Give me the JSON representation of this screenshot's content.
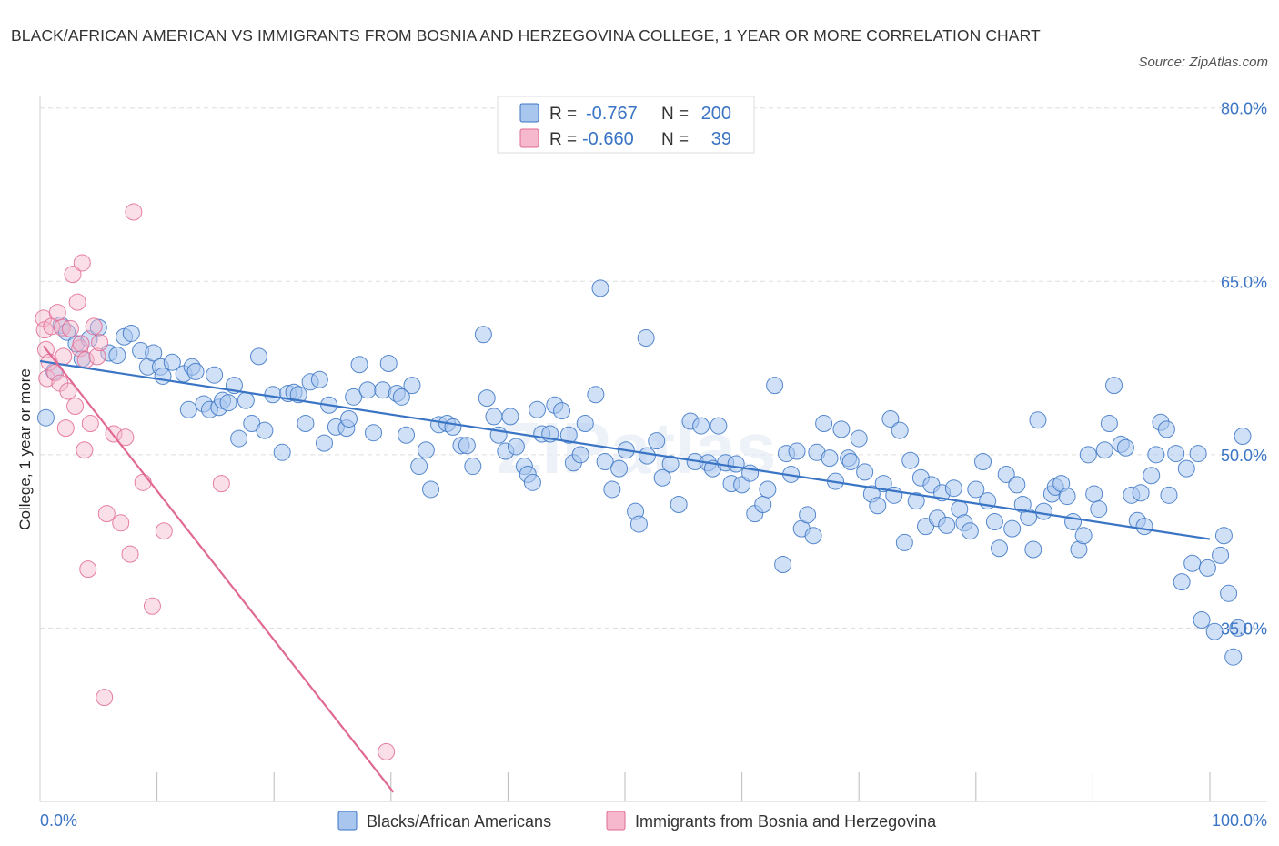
{
  "title": "BLACK/AFRICAN AMERICAN VS IMMIGRANTS FROM BOSNIA AND HERZEGOVINA COLLEGE, 1 YEAR OR MORE CORRELATION CHART",
  "source": "Source: ZipAtlas.com",
  "watermark": "ZIPatlas",
  "colors": {
    "blue": "#3a74c4",
    "blue_fill": "#a9c6ee",
    "pink": "#e06a94",
    "pink_fill": "#f5b8cc",
    "grid": "#dddddd"
  },
  "legend": {
    "rows": [
      {
        "r_label": "R =",
        "r_value": "-0.767",
        "n_label": "N =",
        "n_value": "200"
      },
      {
        "r_label": "R =",
        "r_value": "-0.660",
        "n_label": "N =",
        "n_value": "39"
      }
    ]
  },
  "chart_data": {
    "type": "scatter",
    "ylabel": "College, 1 year or more",
    "xlabel": "",
    "xlim": [
      0,
      100
    ],
    "ylim": [
      20,
      81
    ],
    "x_tick_labels": [
      {
        "value": 0,
        "label": "0.0%"
      },
      {
        "value": 100,
        "label": "100.0%"
      }
    ],
    "y_tick_labels": [
      {
        "value": 35,
        "label": "35.0%"
      },
      {
        "value": 50,
        "label": "50.0%"
      },
      {
        "value": 65,
        "label": "65.0%"
      },
      {
        "value": 80,
        "label": "80.0%"
      }
    ],
    "grid": "horizontal dashed",
    "series": [
      {
        "name": "Blacks/African Americans",
        "color": "#3a74c4",
        "trend": {
          "x": [
            0,
            100
          ],
          "y": [
            58.1,
            42.7
          ]
        },
        "points": [
          [
            0.5,
            53.2
          ],
          [
            1.2,
            57.2
          ],
          [
            1.8,
            61.2
          ],
          [
            2.3,
            60.6
          ],
          [
            3.1,
            59.6
          ],
          [
            3.6,
            58.3
          ],
          [
            4.2,
            60.0
          ],
          [
            5.0,
            61.0
          ],
          [
            5.9,
            58.8
          ],
          [
            6.6,
            58.6
          ],
          [
            7.2,
            60.2
          ],
          [
            7.8,
            60.5
          ],
          [
            8.6,
            59.0
          ],
          [
            9.2,
            57.6
          ],
          [
            9.7,
            58.8
          ],
          [
            10.3,
            57.6
          ],
          [
            10.5,
            56.8
          ],
          [
            11.3,
            58.0
          ],
          [
            12.3,
            57.0
          ],
          [
            12.7,
            53.9
          ],
          [
            13.0,
            57.6
          ],
          [
            13.3,
            57.2
          ],
          [
            14.0,
            54.4
          ],
          [
            14.5,
            53.9
          ],
          [
            14.9,
            56.9
          ],
          [
            15.3,
            54.1
          ],
          [
            15.6,
            54.7
          ],
          [
            16.1,
            54.5
          ],
          [
            16.6,
            56.0
          ],
          [
            17.0,
            51.4
          ],
          [
            17.6,
            54.7
          ],
          [
            18.1,
            52.7
          ],
          [
            18.7,
            58.5
          ],
          [
            19.2,
            52.1
          ],
          [
            19.9,
            55.2
          ],
          [
            20.7,
            50.2
          ],
          [
            21.2,
            55.3
          ],
          [
            21.7,
            55.4
          ],
          [
            22.1,
            55.2
          ],
          [
            22.7,
            52.7
          ],
          [
            23.1,
            56.3
          ],
          [
            23.9,
            56.5
          ],
          [
            24.3,
            51.0
          ],
          [
            24.7,
            54.3
          ],
          [
            25.3,
            52.4
          ],
          [
            26.2,
            52.3
          ],
          [
            26.4,
            53.1
          ],
          [
            26.8,
            55.0
          ],
          [
            27.3,
            57.8
          ],
          [
            28.0,
            55.6
          ],
          [
            28.5,
            51.9
          ],
          [
            29.3,
            55.6
          ],
          [
            29.8,
            57.9
          ],
          [
            30.5,
            55.3
          ],
          [
            30.9,
            55.0
          ],
          [
            31.3,
            51.7
          ],
          [
            31.8,
            56.0
          ],
          [
            32.4,
            49.0
          ],
          [
            33.0,
            50.4
          ],
          [
            33.4,
            47.0
          ],
          [
            34.1,
            52.6
          ],
          [
            34.8,
            52.7
          ],
          [
            35.3,
            52.4
          ],
          [
            36.0,
            50.8
          ],
          [
            36.5,
            50.8
          ],
          [
            37.0,
            49.0
          ],
          [
            37.9,
            60.4
          ],
          [
            38.2,
            54.9
          ],
          [
            38.8,
            53.3
          ],
          [
            39.2,
            51.7
          ],
          [
            39.8,
            50.3
          ],
          [
            40.2,
            53.3
          ],
          [
            40.7,
            50.7
          ],
          [
            41.4,
            49.0
          ],
          [
            41.7,
            48.3
          ],
          [
            42.1,
            47.6
          ],
          [
            42.5,
            53.9
          ],
          [
            42.9,
            51.8
          ],
          [
            43.6,
            51.8
          ],
          [
            44.0,
            54.3
          ],
          [
            44.6,
            53.8
          ],
          [
            45.2,
            51.7
          ],
          [
            45.6,
            49.3
          ],
          [
            46.2,
            50.0
          ],
          [
            46.6,
            52.7
          ],
          [
            47.5,
            55.2
          ],
          [
            47.9,
            64.4
          ],
          [
            48.3,
            49.4
          ],
          [
            48.9,
            47.0
          ],
          [
            49.5,
            48.8
          ],
          [
            50.1,
            50.4
          ],
          [
            50.9,
            45.1
          ],
          [
            51.2,
            44.0
          ],
          [
            51.8,
            60.1
          ],
          [
            51.9,
            49.9
          ],
          [
            52.7,
            51.2
          ],
          [
            53.2,
            48.0
          ],
          [
            53.9,
            49.2
          ],
          [
            54.6,
            45.7
          ],
          [
            55.6,
            52.9
          ],
          [
            56.0,
            49.4
          ],
          [
            56.5,
            52.5
          ],
          [
            57.1,
            49.3
          ],
          [
            57.5,
            48.8
          ],
          [
            58.0,
            52.5
          ],
          [
            58.6,
            49.3
          ],
          [
            59.1,
            47.5
          ],
          [
            59.5,
            49.2
          ],
          [
            60.0,
            47.4
          ],
          [
            60.7,
            48.4
          ],
          [
            61.1,
            44.9
          ],
          [
            61.8,
            45.7
          ],
          [
            62.2,
            47.0
          ],
          [
            62.8,
            56.0
          ],
          [
            63.5,
            40.5
          ],
          [
            63.8,
            50.1
          ],
          [
            64.2,
            48.3
          ],
          [
            64.7,
            50.3
          ],
          [
            65.1,
            43.6
          ],
          [
            65.6,
            44.8
          ],
          [
            66.1,
            43.0
          ],
          [
            66.4,
            50.2
          ],
          [
            67.0,
            52.7
          ],
          [
            67.5,
            49.7
          ],
          [
            68.0,
            47.7
          ],
          [
            68.5,
            52.2
          ],
          [
            69.1,
            49.7
          ],
          [
            69.3,
            49.4
          ],
          [
            70.0,
            51.4
          ],
          [
            70.5,
            48.5
          ],
          [
            71.1,
            46.6
          ],
          [
            71.6,
            45.6
          ],
          [
            72.1,
            47.5
          ],
          [
            72.7,
            53.1
          ],
          [
            73.0,
            46.5
          ],
          [
            73.5,
            52.1
          ],
          [
            73.9,
            42.4
          ],
          [
            74.4,
            49.5
          ],
          [
            74.9,
            46.0
          ],
          [
            75.3,
            48.0
          ],
          [
            75.7,
            43.8
          ],
          [
            76.2,
            47.4
          ],
          [
            76.7,
            44.5
          ],
          [
            77.1,
            46.7
          ],
          [
            77.5,
            43.9
          ],
          [
            78.1,
            47.1
          ],
          [
            78.6,
            45.3
          ],
          [
            79.0,
            44.1
          ],
          [
            79.5,
            43.4
          ],
          [
            80.0,
            47.0
          ],
          [
            80.6,
            49.4
          ],
          [
            81.0,
            46.0
          ],
          [
            81.6,
            44.2
          ],
          [
            82.0,
            41.9
          ],
          [
            82.6,
            48.3
          ],
          [
            83.1,
            43.6
          ],
          [
            83.5,
            47.4
          ],
          [
            84.0,
            45.7
          ],
          [
            84.5,
            44.6
          ],
          [
            84.9,
            41.8
          ],
          [
            85.3,
            53.0
          ],
          [
            85.8,
            45.1
          ],
          [
            86.5,
            46.6
          ],
          [
            86.8,
            47.2
          ],
          [
            87.3,
            47.5
          ],
          [
            87.8,
            46.4
          ],
          [
            88.3,
            44.2
          ],
          [
            88.8,
            41.8
          ],
          [
            89.2,
            43.0
          ],
          [
            89.6,
            50.0
          ],
          [
            90.1,
            46.6
          ],
          [
            90.5,
            45.3
          ],
          [
            91.0,
            50.4
          ],
          [
            91.4,
            52.7
          ],
          [
            91.8,
            56.0
          ],
          [
            92.4,
            50.9
          ],
          [
            92.8,
            50.6
          ],
          [
            93.3,
            46.5
          ],
          [
            93.8,
            44.3
          ],
          [
            94.1,
            46.7
          ],
          [
            94.4,
            43.8
          ],
          [
            95.0,
            48.2
          ],
          [
            95.4,
            50.0
          ],
          [
            95.8,
            52.8
          ],
          [
            96.3,
            52.2
          ],
          [
            96.5,
            46.5
          ],
          [
            97.1,
            50.1
          ],
          [
            97.6,
            39.0
          ],
          [
            98.0,
            48.8
          ],
          [
            98.5,
            40.6
          ],
          [
            99.0,
            50.1
          ],
          [
            99.3,
            35.7
          ],
          [
            99.8,
            40.2
          ],
          [
            100.4,
            34.7
          ],
          [
            100.9,
            41.3
          ],
          [
            101.2,
            43.0
          ],
          [
            101.6,
            38.0
          ],
          [
            102.0,
            32.5
          ],
          [
            102.4,
            35.0
          ],
          [
            102.8,
            51.6
          ]
        ]
      },
      {
        "name": "Immigrants from Bosnia and Herzegovina",
        "color": "#e06a94",
        "trend": {
          "x": [
            0.3,
            30.2
          ],
          "y": [
            59.4,
            20.8
          ]
        },
        "points": [
          [
            0.3,
            61.8
          ],
          [
            0.4,
            60.8
          ],
          [
            0.5,
            59.1
          ],
          [
            0.6,
            56.6
          ],
          [
            0.8,
            58.0
          ],
          [
            1.0,
            61.1
          ],
          [
            1.3,
            57.1
          ],
          [
            1.5,
            62.3
          ],
          [
            1.7,
            56.2
          ],
          [
            1.9,
            61.0
          ],
          [
            2.0,
            58.5
          ],
          [
            2.2,
            52.3
          ],
          [
            2.4,
            55.5
          ],
          [
            2.6,
            60.9
          ],
          [
            2.8,
            65.6
          ],
          [
            3.0,
            54.2
          ],
          [
            3.2,
            63.2
          ],
          [
            3.4,
            59.2
          ],
          [
            3.5,
            59.6
          ],
          [
            3.6,
            66.6
          ],
          [
            3.8,
            50.4
          ],
          [
            3.9,
            58.2
          ],
          [
            4.1,
            40.1
          ],
          [
            4.3,
            52.7
          ],
          [
            4.6,
            61.1
          ],
          [
            4.9,
            58.5
          ],
          [
            5.1,
            59.7
          ],
          [
            5.5,
            29.0
          ],
          [
            5.7,
            44.9
          ],
          [
            6.3,
            51.8
          ],
          [
            6.9,
            44.1
          ],
          [
            7.3,
            51.5
          ],
          [
            7.7,
            41.4
          ],
          [
            8.0,
            71.0
          ],
          [
            8.8,
            47.6
          ],
          [
            9.6,
            36.9
          ],
          [
            10.6,
            43.4
          ],
          [
            15.5,
            47.5
          ],
          [
            29.6,
            24.3
          ]
        ]
      }
    ]
  },
  "bottom_legend": [
    {
      "label": "Blacks/African Americans"
    },
    {
      "label": "Immigrants from Bosnia and Herzegovina"
    }
  ]
}
